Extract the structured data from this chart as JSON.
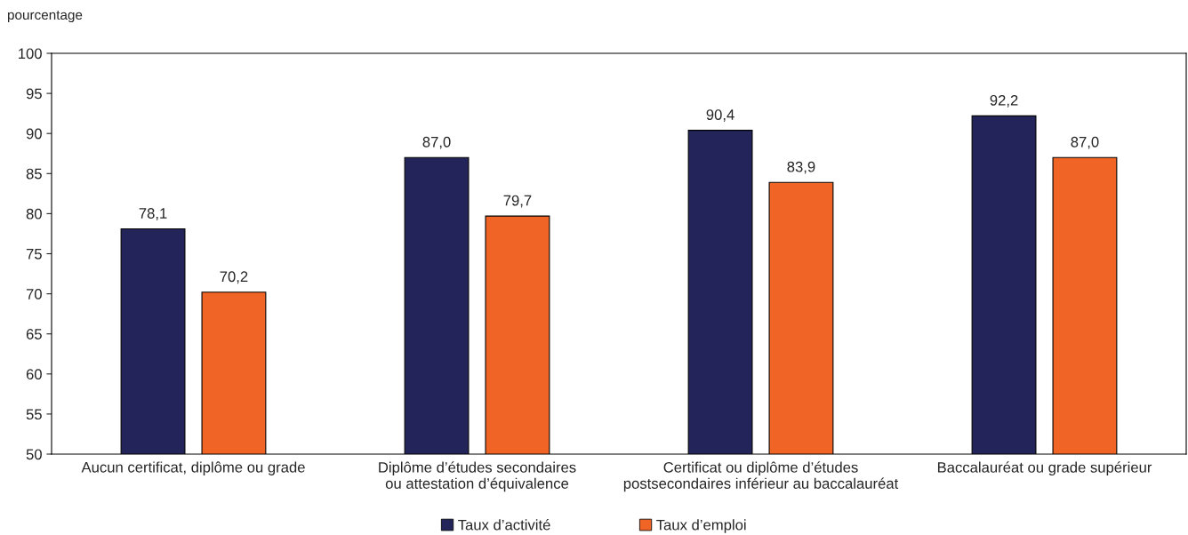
{
  "chart_data": {
    "type": "bar",
    "ylabel": "pourcentage",
    "categories": [
      "Aucun certificat, diplôme ou grade",
      "Diplôme d’études secondaires\nou attestation d’équivalence",
      "Certificat ou diplôme d’études\npostsecondaires inférieur au baccalauréat",
      "Baccalauréat ou grade supérieur"
    ],
    "series": [
      {
        "name": "Taux d’activité",
        "color": "#22245a",
        "values": [
          78.1,
          87.0,
          90.4,
          92.2
        ],
        "value_labels": [
          "78,1",
          "87,0",
          "90,4",
          "92,2"
        ]
      },
      {
        "name": "Taux d’emploi",
        "color": "#f06525",
        "values": [
          70.2,
          79.7,
          83.9,
          87.0
        ],
        "value_labels": [
          "70,2",
          "79,7",
          "83,9",
          "87,0"
        ]
      }
    ],
    "ylim": [
      50,
      100
    ],
    "yticks": [
      50,
      55,
      60,
      65,
      70,
      75,
      80,
      85,
      90,
      95,
      100
    ],
    "grid": false,
    "legend": "bottom"
  }
}
